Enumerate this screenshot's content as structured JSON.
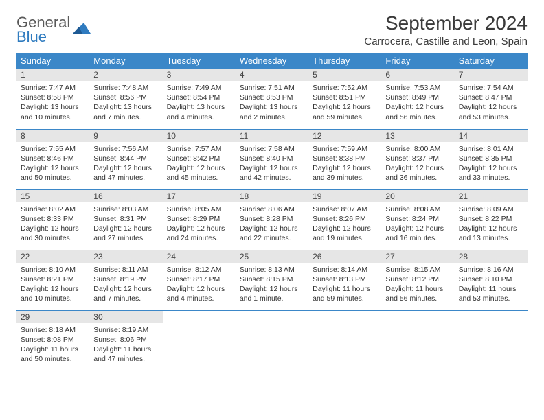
{
  "brand": {
    "name1": "General",
    "name2": "Blue",
    "icon_color": "#2f7bbf"
  },
  "header": {
    "title": "September 2024",
    "location": "Carrocera, Castille and Leon, Spain"
  },
  "colors": {
    "header_bg": "#3b87c8",
    "header_fg": "#ffffff",
    "daynum_bg": "#e6e6e6",
    "rule": "#3b87c8",
    "text": "#333333"
  },
  "weekdays": [
    "Sunday",
    "Monday",
    "Tuesday",
    "Wednesday",
    "Thursday",
    "Friday",
    "Saturday"
  ],
  "days": [
    {
      "n": "1",
      "sunrise": "7:47 AM",
      "sunset": "8:58 PM",
      "day_h": "13",
      "day_m": "10"
    },
    {
      "n": "2",
      "sunrise": "7:48 AM",
      "sunset": "8:56 PM",
      "day_h": "13",
      "day_m": "7"
    },
    {
      "n": "3",
      "sunrise": "7:49 AM",
      "sunset": "8:54 PM",
      "day_h": "13",
      "day_m": "4"
    },
    {
      "n": "4",
      "sunrise": "7:51 AM",
      "sunset": "8:53 PM",
      "day_h": "13",
      "day_m": "2"
    },
    {
      "n": "5",
      "sunrise": "7:52 AM",
      "sunset": "8:51 PM",
      "day_h": "12",
      "day_m": "59"
    },
    {
      "n": "6",
      "sunrise": "7:53 AM",
      "sunset": "8:49 PM",
      "day_h": "12",
      "day_m": "56"
    },
    {
      "n": "7",
      "sunrise": "7:54 AM",
      "sunset": "8:47 PM",
      "day_h": "12",
      "day_m": "53"
    },
    {
      "n": "8",
      "sunrise": "7:55 AM",
      "sunset": "8:46 PM",
      "day_h": "12",
      "day_m": "50"
    },
    {
      "n": "9",
      "sunrise": "7:56 AM",
      "sunset": "8:44 PM",
      "day_h": "12",
      "day_m": "47"
    },
    {
      "n": "10",
      "sunrise": "7:57 AM",
      "sunset": "8:42 PM",
      "day_h": "12",
      "day_m": "45"
    },
    {
      "n": "11",
      "sunrise": "7:58 AM",
      "sunset": "8:40 PM",
      "day_h": "12",
      "day_m": "42"
    },
    {
      "n": "12",
      "sunrise": "7:59 AM",
      "sunset": "8:38 PM",
      "day_h": "12",
      "day_m": "39"
    },
    {
      "n": "13",
      "sunrise": "8:00 AM",
      "sunset": "8:37 PM",
      "day_h": "12",
      "day_m": "36"
    },
    {
      "n": "14",
      "sunrise": "8:01 AM",
      "sunset": "8:35 PM",
      "day_h": "12",
      "day_m": "33"
    },
    {
      "n": "15",
      "sunrise": "8:02 AM",
      "sunset": "8:33 PM",
      "day_h": "12",
      "day_m": "30"
    },
    {
      "n": "16",
      "sunrise": "8:03 AM",
      "sunset": "8:31 PM",
      "day_h": "12",
      "day_m": "27"
    },
    {
      "n": "17",
      "sunrise": "8:05 AM",
      "sunset": "8:29 PM",
      "day_h": "12",
      "day_m": "24"
    },
    {
      "n": "18",
      "sunrise": "8:06 AM",
      "sunset": "8:28 PM",
      "day_h": "12",
      "day_m": "22"
    },
    {
      "n": "19",
      "sunrise": "8:07 AM",
      "sunset": "8:26 PM",
      "day_h": "12",
      "day_m": "19"
    },
    {
      "n": "20",
      "sunrise": "8:08 AM",
      "sunset": "8:24 PM",
      "day_h": "12",
      "day_m": "16"
    },
    {
      "n": "21",
      "sunrise": "8:09 AM",
      "sunset": "8:22 PM",
      "day_h": "12",
      "day_m": "13"
    },
    {
      "n": "22",
      "sunrise": "8:10 AM",
      "sunset": "8:21 PM",
      "day_h": "12",
      "day_m": "10"
    },
    {
      "n": "23",
      "sunrise": "8:11 AM",
      "sunset": "8:19 PM",
      "day_h": "12",
      "day_m": "7"
    },
    {
      "n": "24",
      "sunrise": "8:12 AM",
      "sunset": "8:17 PM",
      "day_h": "12",
      "day_m": "4"
    },
    {
      "n": "25",
      "sunrise": "8:13 AM",
      "sunset": "8:15 PM",
      "day_h": "12",
      "day_m": "1",
      "day_m_label": "minute"
    },
    {
      "n": "26",
      "sunrise": "8:14 AM",
      "sunset": "8:13 PM",
      "day_h": "11",
      "day_m": "59"
    },
    {
      "n": "27",
      "sunrise": "8:15 AM",
      "sunset": "8:12 PM",
      "day_h": "11",
      "day_m": "56"
    },
    {
      "n": "28",
      "sunrise": "8:16 AM",
      "sunset": "8:10 PM",
      "day_h": "11",
      "day_m": "53"
    },
    {
      "n": "29",
      "sunrise": "8:18 AM",
      "sunset": "8:08 PM",
      "day_h": "11",
      "day_m": "50"
    },
    {
      "n": "30",
      "sunrise": "8:19 AM",
      "sunset": "8:06 PM",
      "day_h": "11",
      "day_m": "47"
    }
  ],
  "labels": {
    "sunrise": "Sunrise:",
    "sunset": "Sunset:",
    "daylight": "Daylight:",
    "hours": "hours",
    "and": "and",
    "minutes": "minutes."
  }
}
